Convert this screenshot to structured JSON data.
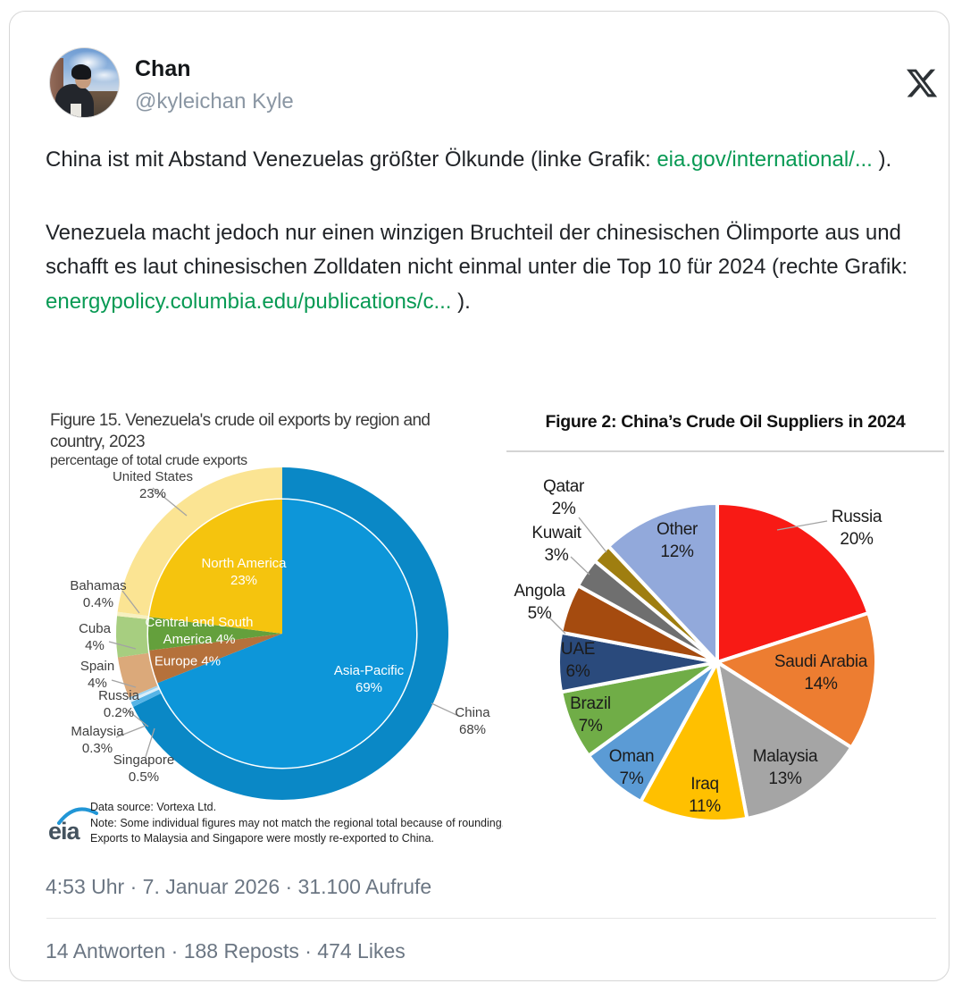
{
  "page": {
    "colors": {
      "link_green": "#089a54",
      "text": "#202327",
      "muted": "#6b7683",
      "card_border": "#d6d6d6",
      "x_logo": "#2d3236"
    }
  },
  "header": {
    "name": "Chan",
    "handle": "@kyleichan Kyle"
  },
  "tweet": {
    "p1_text": "China ist mit Abstand Venezuelas größter Ölkunde (linke Grafik: ",
    "p1_link_a": "eia.gov/",
    "p1_link_b": "international/...",
    "p1_tail": " ).",
    "p2_text": "Venezuela macht jedoch nur einen winzigen Bruchteil der chinesischen Ölimporte aus und schafft es laut chinesischen Zolldaten nicht einmal unter die Top 10 für 2024 (rechte Grafik: ",
    "p2_link": "energypolicy.columbia.edu/publications/c...",
    "p2_tail": " )."
  },
  "chart_data": [
    {
      "type": "pie",
      "title": "Figure 15. Venezuela's crude oil exports by region and country, 2023",
      "subtitle": "percentage of total crude exports",
      "direction": "clockwise",
      "start_angle_deg": 0,
      "series": [
        {
          "name": "regions (inner ring)",
          "slices": [
            {
              "label": "Asia-Pacific",
              "value": 69,
              "color": "#0D96D9",
              "display": "Asia-Pacific\n69%"
            },
            {
              "label": "Europe",
              "value": 4,
              "color": "#B5713B",
              "display": "Europe 4%"
            },
            {
              "label": "Central and South America",
              "value": 4,
              "color": "#64A03C",
              "display": "Central and South\nAmerica 4%"
            },
            {
              "label": "North America",
              "value": 23,
              "color": "#F5C40E",
              "display": "North America\n23%"
            }
          ]
        },
        {
          "name": "countries (outer ring)",
          "slices": [
            {
              "label": "China",
              "value": 68,
              "color": "#0A88C6",
              "display": "China\n68%"
            },
            {
              "label": "Singapore",
              "value": 0.5,
              "color": "#57B4E6",
              "display": "Singapore\n0.5%"
            },
            {
              "label": "Malaysia",
              "value": 0.3,
              "color": "#D9EDF9",
              "display": "Malaysia\n0.3%"
            },
            {
              "label": "Russia",
              "value": 0.2,
              "color": "#9ED3F0",
              "display": "Russia\n0.2%"
            },
            {
              "label": "Spain",
              "value": 4,
              "color": "#DBA97A",
              "display": "Spain\n4%"
            },
            {
              "label": "Cuba",
              "value": 4,
              "color": "#A7CE80",
              "display": "Cuba\n4%"
            },
            {
              "label": "Bahamas",
              "value": 0.4,
              "color": "#F6F0C0",
              "display": "Bahamas\n0.4%"
            },
            {
              "label": "United States",
              "value": 23,
              "color": "#FBE493",
              "display": "United States\n23%"
            }
          ]
        }
      ],
      "source": "Data source: Vortexa Ltd.",
      "notes": [
        "Note: Some individual figures may not match the regional total because of rounding.",
        "Exports to Malaysia and Singapore were mostly re-exported to China."
      ],
      "logo": "eia"
    },
    {
      "type": "pie",
      "title": "Figure 2: China’s Crude Oil Suppliers in 2024",
      "direction": "clockwise",
      "start_angle_deg": 0,
      "slices": [
        {
          "label": "Russia",
          "value": 20,
          "color": "#F81A15",
          "display": "Russia\n20%"
        },
        {
          "label": "Saudi Arabia",
          "value": 14,
          "color": "#ED7D31",
          "display": "Saudi Arabia\n14%"
        },
        {
          "label": "Malaysia",
          "value": 13,
          "color": "#A5A5A5",
          "display": "Malaysia\n13%"
        },
        {
          "label": "Iraq",
          "value": 11,
          "color": "#FFC000",
          "display": "Iraq\n11%"
        },
        {
          "label": "Oman",
          "value": 7,
          "color": "#5B9BD5",
          "display": "Oman\n7%"
        },
        {
          "label": "Brazil",
          "value": 7,
          "color": "#70AD47",
          "display": "Brazil\n7%"
        },
        {
          "label": "UAE",
          "value": 6,
          "color": "#2A4A7C",
          "display": "UAE\n6%"
        },
        {
          "label": "Angola",
          "value": 5,
          "color": "#A54B0F",
          "display": "Angola\n5%"
        },
        {
          "label": "Kuwait",
          "value": 3,
          "color": "#6F6F6F",
          "display": "Kuwait\n3%"
        },
        {
          "label": "Qatar",
          "value": 2,
          "color": "#9F7E10",
          "display": "Qatar\n2%"
        },
        {
          "label": "Other",
          "value": 12,
          "color": "#92A9DB",
          "display": "Other\n12%"
        }
      ]
    }
  ],
  "footer": {
    "timestamp": "4:53 Uhr · 7. Januar 2026 · 31.100 Aufrufe",
    "stats": "14 Antworten · 188 Reposts · 474 Likes"
  }
}
